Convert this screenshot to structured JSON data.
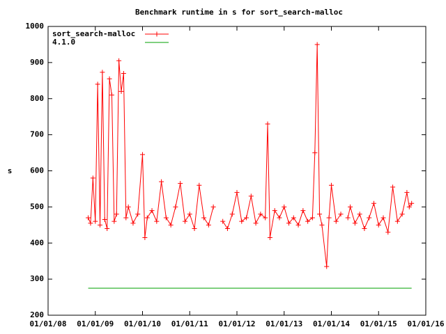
{
  "chart_data": {
    "type": "line",
    "title": "Benchmark runtime in s for sort_search-malloc",
    "ylabel": "s",
    "xlim": [
      2008,
      2016
    ],
    "xticks": [
      {
        "value": 2008,
        "label": "01/01/08"
      },
      {
        "value": 2009,
        "label": "01/01/09"
      },
      {
        "value": 2010,
        "label": "01/01/10"
      },
      {
        "value": 2011,
        "label": "01/01/11"
      },
      {
        "value": 2012,
        "label": "01/01/12"
      },
      {
        "value": 2013,
        "label": "01/01/13"
      },
      {
        "value": 2014,
        "label": "01/01/14"
      },
      {
        "value": 2015,
        "label": "01/01/15"
      },
      {
        "value": 2016,
        "label": "01/01/16"
      }
    ],
    "ylim": [
      200,
      1000
    ],
    "yticks": [
      200,
      300,
      400,
      500,
      600,
      700,
      800,
      900,
      1000
    ],
    "legend": "top-left",
    "series": [
      {
        "name": "sort_search-malloc",
        "color": "#ff0000",
        "marker": "+",
        "x": [
          2008.85,
          2008.9,
          2008.95,
          2009.0,
          2009.05,
          2009.1,
          2009.15,
          2009.2,
          2009.25,
          2009.3,
          2009.35,
          2009.4,
          2009.45,
          2009.5,
          2009.55,
          2009.6,
          2009.65,
          2009.7,
          2009.8,
          2009.9,
          2010.0,
          2010.05,
          2010.1,
          2010.2,
          2010.3,
          2010.4,
          2010.5,
          2010.6,
          2010.7,
          2010.8,
          2010.9,
          2011.0,
          2011.1,
          2011.2,
          2011.3,
          2011.4,
          2011.5,
          2011.55,
          2011.7,
          2011.8,
          2011.9,
          2012.0,
          2012.1,
          2012.2,
          2012.3,
          2012.4,
          2012.5,
          2012.6,
          2012.65,
          2012.7,
          2012.8,
          2012.9,
          2013.0,
          2013.1,
          2013.2,
          2013.3,
          2013.4,
          2013.5,
          2013.6,
          2013.65,
          2013.7,
          2013.75,
          2013.8,
          2013.9,
          2013.95,
          2014.0,
          2014.1,
          2014.2,
          2014.25,
          2014.35,
          2014.4,
          2014.5,
          2014.6,
          2014.7,
          2014.8,
          2014.9,
          2015.0,
          2015.1,
          2015.2,
          2015.3,
          2015.4,
          2015.5,
          2015.6,
          2015.65,
          2015.7
        ],
        "values": [
          470,
          455,
          580,
          460,
          840,
          450,
          873,
          465,
          440,
          855,
          810,
          460,
          480,
          905,
          820,
          870,
          470,
          500,
          455,
          480,
          645,
          415,
          470,
          490,
          460,
          570,
          470,
          450,
          500,
          565,
          460,
          480,
          440,
          560,
          470,
          450,
          500,
          null,
          460,
          440,
          480,
          540,
          460,
          470,
          530,
          455,
          480,
          470,
          730,
          415,
          490,
          470,
          500,
          455,
          470,
          450,
          490,
          460,
          470,
          650,
          950,
          480,
          450,
          335,
          470,
          560,
          460,
          480,
          null,
          470,
          500,
          455,
          480,
          440,
          470,
          510,
          450,
          470,
          430,
          555,
          460,
          480,
          540,
          500,
          510
        ]
      },
      {
        "name": "4.1.0",
        "color": "#00a000",
        "x": [
          2008.85,
          2015.7
        ],
        "values": [
          275,
          275
        ]
      }
    ]
  }
}
